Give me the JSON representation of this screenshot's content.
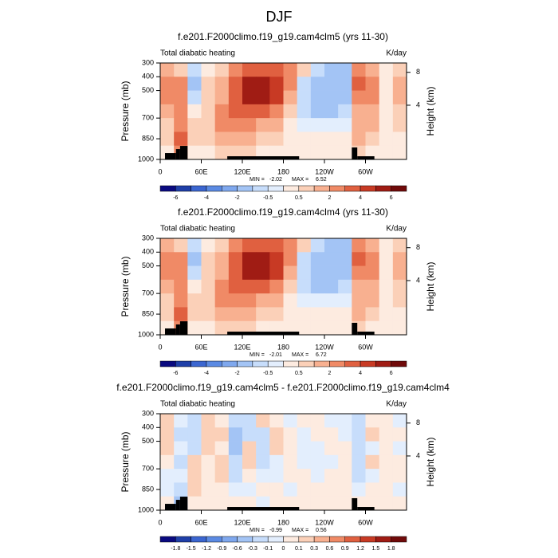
{
  "title": "DJF",
  "chart_data": [
    {
      "type": "contour",
      "title": "f.e201.F2000climo.f19_g19.cam4clm5 (yrs 11-30)",
      "left_label": "Total diabatic heating",
      "right_label": "K/day",
      "ylabel": "Pressure (mb)",
      "y2label": "Height (km)",
      "x": [
        10,
        30,
        50,
        70,
        90,
        110,
        130,
        150,
        170,
        190,
        210,
        230,
        250,
        270,
        290,
        310,
        330,
        350
      ],
      "y": [
        350,
        450,
        550,
        650,
        750,
        850,
        950
      ],
      "z": [
        [
          1,
          0.5,
          -1,
          0,
          0.5,
          2,
          3,
          3,
          3,
          2,
          0.5,
          -1,
          -1.5,
          -1.5,
          2,
          1.5,
          0,
          0.5
        ],
        [
          2,
          2.5,
          -1.5,
          0.5,
          1,
          3,
          5,
          5,
          4,
          2,
          -1,
          -2,
          -2,
          -1.5,
          3,
          2.5,
          0,
          1
        ],
        [
          2,
          2.5,
          -1,
          0.5,
          1.5,
          3.5,
          5,
          5,
          4,
          1.5,
          -1,
          -2,
          -2,
          -1.5,
          2.5,
          2,
          0,
          1
        ],
        [
          1,
          2,
          0,
          0.5,
          2,
          3,
          3,
          3,
          2,
          0.5,
          -1,
          -1.5,
          -1.5,
          -1,
          1.5,
          1.5,
          0,
          0.5
        ],
        [
          0.5,
          2,
          0.5,
          0.5,
          2,
          2,
          2,
          1.5,
          1,
          0,
          -0.5,
          -0.5,
          -0.5,
          -0.5,
          1.5,
          1,
          0,
          0.5
        ],
        [
          0.5,
          3,
          0.5,
          0.5,
          1.5,
          1.5,
          1,
          0.5,
          0.5,
          0.3,
          0.3,
          0.3,
          0.3,
          0,
          1,
          0.5,
          0.3,
          0.3
        ],
        [
          0.3,
          2,
          0.3,
          0.3,
          0.5,
          0.5,
          0.5,
          0.3,
          0.3,
          0.3,
          0.3,
          0.3,
          0.3,
          0.3,
          0.5,
          0.3,
          0.3,
          0.3
        ]
      ],
      "xlim": [
        0,
        360
      ],
      "ylim": [
        1000,
        300
      ],
      "y2lim": [
        0,
        9.63
      ],
      "xticks": [
        0,
        {
          "value": 60,
          "label": "60E"
        },
        {
          "value": 120,
          "label": "120E"
        },
        180,
        {
          "value": 240,
          "label": "120W"
        },
        {
          "value": 300,
          "label": "60W"
        }
      ],
      "yticks": [
        300,
        400,
        500,
        700,
        850,
        1000
      ],
      "y2ticks": [
        4,
        8
      ],
      "terrain": {
        "x0": [
          7,
          23,
          29,
          98,
          280,
          288
        ],
        "x1": [
          23,
          29,
          40,
          203,
          288,
          313
        ],
        "top": [
          954,
          925,
          902,
          977,
          913,
          977
        ]
      },
      "colorbar": {
        "levels": [
          -6,
          -5,
          -4,
          -3,
          -2,
          -1,
          -0.5,
          0,
          0.5,
          1,
          2,
          3,
          4,
          5,
          6
        ],
        "label_step": 2,
        "colors": [
          "#0a0a80",
          "#1f3fa8",
          "#3b66d0",
          "#5b8ae3",
          "#7fa8ee",
          "#a3c4f5",
          "#c7ddfb",
          "#e3eefd",
          "#fdebe0",
          "#fbd0b8",
          "#f8b090",
          "#f08a66",
          "#e06040",
          "#c83a24",
          "#a01c14",
          "#700a0a"
        ]
      },
      "min_label": "MIN =",
      "min": -2.02,
      "max_label": "MAX =",
      "max": 6.52
    },
    {
      "type": "contour",
      "title": "f.e201.F2000climo.f19_g19.cam4clm4 (yrs 11-30)",
      "left_label": "Total diabatic heating",
      "right_label": "K/day",
      "ylabel": "Pressure (mb)",
      "y2label": "Height (km)",
      "x": [
        10,
        30,
        50,
        70,
        90,
        110,
        130,
        150,
        170,
        190,
        210,
        230,
        250,
        270,
        290,
        310,
        330,
        350
      ],
      "y": [
        350,
        450,
        550,
        650,
        750,
        850,
        950
      ],
      "z": [
        [
          1,
          0.5,
          -1,
          0,
          0.5,
          2,
          3,
          3,
          3,
          2,
          0.5,
          -1,
          -1.5,
          -1.5,
          2,
          1.5,
          0,
          0.5
        ],
        [
          2,
          2.5,
          -1.5,
          0.5,
          1,
          3.5,
          5,
          5,
          4,
          2,
          -1,
          -2,
          -2,
          -1.5,
          3,
          2.5,
          0,
          1
        ],
        [
          2,
          2.5,
          -1,
          0.5,
          1.5,
          3.5,
          5,
          5.5,
          4,
          1.5,
          -1,
          -2,
          -2,
          -1.5,
          2.5,
          2,
          0,
          1
        ],
        [
          1,
          2,
          0,
          0.5,
          2,
          3,
          3,
          3,
          2,
          0.5,
          -1,
          -1.5,
          -1.5,
          -1,
          1.5,
          1.5,
          0,
          0.5
        ],
        [
          0.5,
          2,
          0.5,
          0.5,
          2,
          2,
          2,
          1.5,
          1,
          0,
          -0.5,
          -0.5,
          -0.5,
          -0.5,
          1.5,
          1,
          0,
          0.5
        ],
        [
          0.5,
          3,
          0.5,
          0.5,
          1.5,
          1.5,
          1,
          0.5,
          0.5,
          0.3,
          0.3,
          0.3,
          0.3,
          0,
          1,
          0.5,
          0.3,
          0.3
        ],
        [
          0.3,
          2.5,
          0.3,
          0.3,
          0.5,
          0.5,
          0.5,
          0.3,
          0.3,
          0.3,
          0.3,
          0.3,
          0.3,
          0.3,
          0.5,
          0.3,
          0.3,
          0.3
        ]
      ],
      "xlim": [
        0,
        360
      ],
      "ylim": [
        1000,
        300
      ],
      "y2lim": [
        0,
        9.63
      ],
      "xticks": [
        0,
        {
          "value": 60,
          "label": "60E"
        },
        {
          "value": 120,
          "label": "120E"
        },
        180,
        {
          "value": 240,
          "label": "120W"
        },
        {
          "value": 300,
          "label": "60W"
        }
      ],
      "yticks": [
        300,
        400,
        500,
        700,
        850,
        1000
      ],
      "y2ticks": [
        4,
        8
      ],
      "terrain": {
        "x0": [
          7,
          23,
          29,
          98,
          280,
          288
        ],
        "x1": [
          23,
          29,
          40,
          203,
          288,
          313
        ],
        "top": [
          954,
          925,
          902,
          977,
          913,
          977
        ]
      },
      "colorbar": {
        "levels": [
          -6,
          -5,
          -4,
          -3,
          -2,
          -1,
          -0.5,
          0,
          0.5,
          1,
          2,
          3,
          4,
          5,
          6
        ],
        "label_step": 2,
        "colors": [
          "#0a0a80",
          "#1f3fa8",
          "#3b66d0",
          "#5b8ae3",
          "#7fa8ee",
          "#a3c4f5",
          "#c7ddfb",
          "#e3eefd",
          "#fdebe0",
          "#fbd0b8",
          "#f8b090",
          "#f08a66",
          "#e06040",
          "#c83a24",
          "#a01c14",
          "#700a0a"
        ]
      },
      "min_label": "MIN =",
      "min": -2.01,
      "max_label": "MAX =",
      "max": 6.72
    },
    {
      "type": "contour",
      "title": "f.e201.F2000climo.f19_g19.cam4clm5 - f.e201.F2000climo.f19_g19.cam4clm4",
      "left_label": "Total diabatic heating",
      "right_label": "K/day",
      "ylabel": "Pressure (mb)",
      "y2label": "Height (km)",
      "x": [
        10,
        30,
        50,
        70,
        90,
        110,
        130,
        150,
        170,
        190,
        210,
        230,
        250,
        270,
        290,
        310,
        330,
        350
      ],
      "y": [
        350,
        450,
        550,
        650,
        750,
        850,
        950
      ],
      "z": [
        [
          0.1,
          -0.1,
          -0.2,
          0.1,
          0.05,
          -0.3,
          -0.2,
          0.1,
          0.05,
          -0.05,
          0.05,
          0.05,
          -0.05,
          -0.05,
          -0.2,
          0.05,
          0.05,
          -0.05
        ],
        [
          0.2,
          -0.2,
          -0.3,
          0.1,
          0.1,
          -0.5,
          -0.3,
          -0.2,
          0.1,
          0.05,
          -0.05,
          0.05,
          0.05,
          -0.05,
          -0.3,
          0.1,
          0.05,
          0.05
        ],
        [
          0.1,
          -0.1,
          -0.2,
          0.1,
          0.05,
          -0.4,
          0.2,
          -0.3,
          0.1,
          0.05,
          -0.05,
          -0.05,
          0.05,
          0.05,
          -0.2,
          -0.1,
          0.05,
          -0.05
        ],
        [
          0.05,
          -0.2,
          0.1,
          0.05,
          0.1,
          -0.3,
          0.1,
          -0.2,
          -0.1,
          0.05,
          -0.05,
          -0.05,
          -0.05,
          0.05,
          -0.3,
          0.1,
          0.05,
          0.05
        ],
        [
          -0.05,
          -0.1,
          0.2,
          0.05,
          0.1,
          -0.2,
          0.05,
          -0.1,
          -0.05,
          0.05,
          0.05,
          -0.05,
          0.05,
          0.05,
          -0.2,
          -0.05,
          0.05,
          0.05
        ],
        [
          -0.1,
          -0.3,
          0.1,
          0.05,
          0.05,
          -0.1,
          -0.05,
          0.05,
          0.05,
          -0.05,
          0.05,
          0.05,
          0.05,
          0.05,
          -0.1,
          0.05,
          0.05,
          -0.05
        ],
        [
          0.05,
          -0.5,
          0.05,
          0.05,
          0.05,
          0.05,
          0.05,
          -0.05,
          0.05,
          0.05,
          0.05,
          0.05,
          0.05,
          0.05,
          0.05,
          0.05,
          0.05,
          0.05
        ]
      ],
      "xlim": [
        0,
        360
      ],
      "ylim": [
        1000,
        300
      ],
      "y2lim": [
        0,
        9.63
      ],
      "xticks": [
        0,
        {
          "value": 60,
          "label": "60E"
        },
        {
          "value": 120,
          "label": "120E"
        },
        180,
        {
          "value": 240,
          "label": "120W"
        },
        {
          "value": 300,
          "label": "60W"
        }
      ],
      "yticks": [
        300,
        400,
        500,
        700,
        850,
        1000
      ],
      "y2ticks": [
        4,
        8
      ],
      "terrain": {
        "x0": [
          7,
          23,
          29,
          98,
          280,
          288
        ],
        "x1": [
          23,
          29,
          40,
          203,
          288,
          313
        ],
        "top": [
          954,
          925,
          902,
          977,
          913,
          977
        ]
      },
      "colorbar": {
        "levels": [
          -1.8,
          -1.5,
          -1.2,
          -0.9,
          -0.6,
          -0.3,
          -0.1,
          0,
          0.1,
          0.3,
          0.6,
          0.9,
          1.2,
          1.5,
          1.8
        ],
        "label_step": 1,
        "colors": [
          "#0a0a80",
          "#1f3fa8",
          "#3b66d0",
          "#5b8ae3",
          "#7fa8ee",
          "#a3c4f5",
          "#c7ddfb",
          "#e3eefd",
          "#fdebe0",
          "#fbd0b8",
          "#f8b090",
          "#f08a66",
          "#e06040",
          "#c83a24",
          "#a01c14",
          "#700a0a"
        ]
      },
      "min_label": "MIN =",
      "min": -0.99,
      "max_label": "MAX =",
      "max": 0.56
    }
  ]
}
